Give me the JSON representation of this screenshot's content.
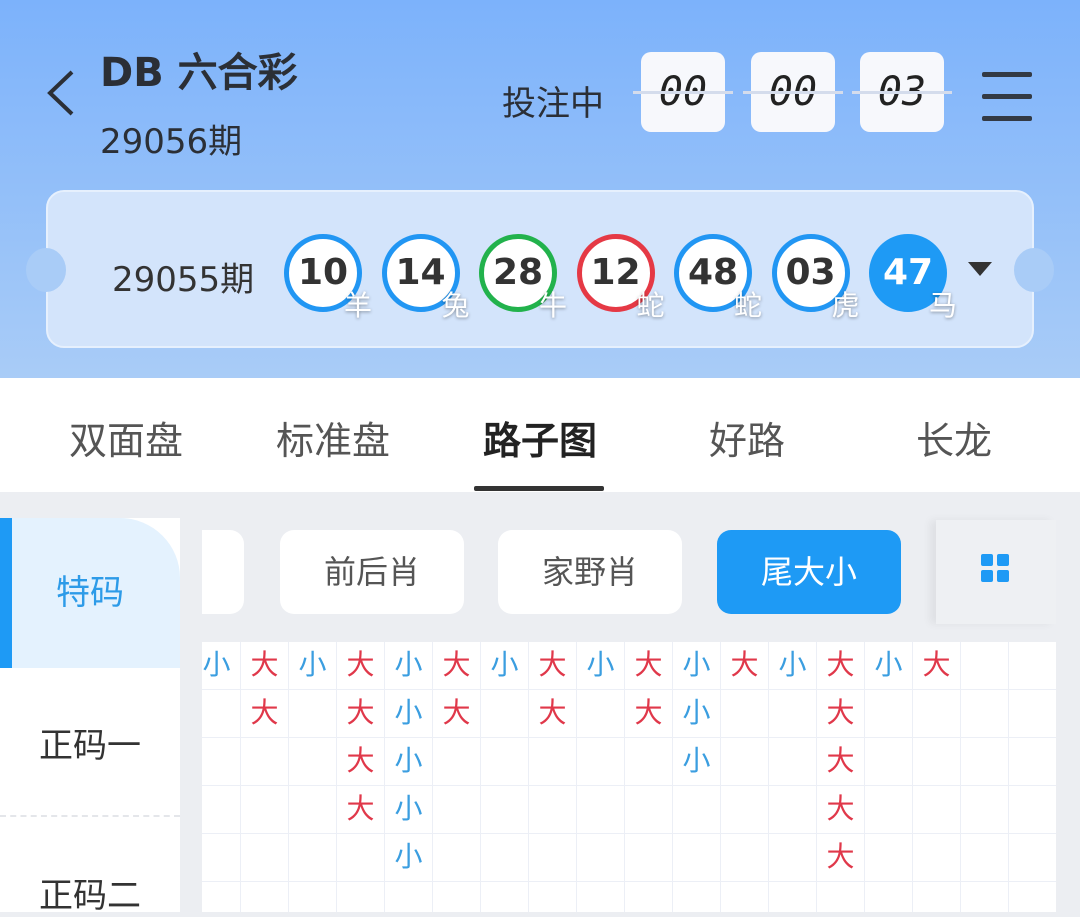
{
  "header": {
    "title": "DB 六合彩",
    "period": "29056期",
    "status": "投注中",
    "countdown": [
      "00",
      "00",
      "03"
    ]
  },
  "last_draw": {
    "period": "29055期",
    "balls": [
      {
        "num": "10",
        "zodiac": "羊",
        "color": "#2196f3",
        "filled": false
      },
      {
        "num": "14",
        "zodiac": "兔",
        "color": "#2196f3",
        "filled": false
      },
      {
        "num": "28",
        "zodiac": "牛",
        "color": "#22b24c",
        "filled": false
      },
      {
        "num": "12",
        "zodiac": "蛇",
        "color": "#e53945",
        "filled": false
      },
      {
        "num": "48",
        "zodiac": "蛇",
        "color": "#2196f3",
        "filled": false
      },
      {
        "num": "03",
        "zodiac": "虎",
        "color": "#2196f3",
        "filled": false
      },
      {
        "num": "47",
        "zodiac": "马",
        "color": "#1e9af5",
        "filled": true
      }
    ]
  },
  "tabs": [
    {
      "label": "双面盘"
    },
    {
      "label": "标准盘"
    },
    {
      "label": "路子图",
      "active": true
    },
    {
      "label": "好路"
    },
    {
      "label": "长龙"
    }
  ],
  "sidebar": [
    {
      "label": "特码",
      "active": true
    },
    {
      "label": "正码一"
    },
    {
      "label": "正码二"
    }
  ],
  "filters": [
    {
      "label": "前后肖"
    },
    {
      "label": "家野肖"
    },
    {
      "label": "尾大小",
      "active": true
    }
  ],
  "colors": {
    "big": "#e0384a",
    "small": "#3b9ee0",
    "accent": "#1e9af5"
  },
  "road": {
    "columns": [
      [
        "小"
      ],
      [
        "大",
        "大"
      ],
      [
        "小"
      ],
      [
        "大",
        "大",
        "大",
        "大"
      ],
      [
        "小",
        "小",
        "小",
        "小",
        "小"
      ],
      [
        "大",
        "大"
      ],
      [
        "小"
      ],
      [
        "大",
        "大"
      ],
      [
        "小"
      ],
      [
        "大",
        "大"
      ],
      [
        "小",
        "小",
        "小"
      ],
      [
        "大"
      ],
      [
        "小"
      ],
      [
        "大",
        "大",
        "大",
        "大",
        "大"
      ],
      [
        "小"
      ],
      [
        "大"
      ],
      [],
      []
    ]
  }
}
